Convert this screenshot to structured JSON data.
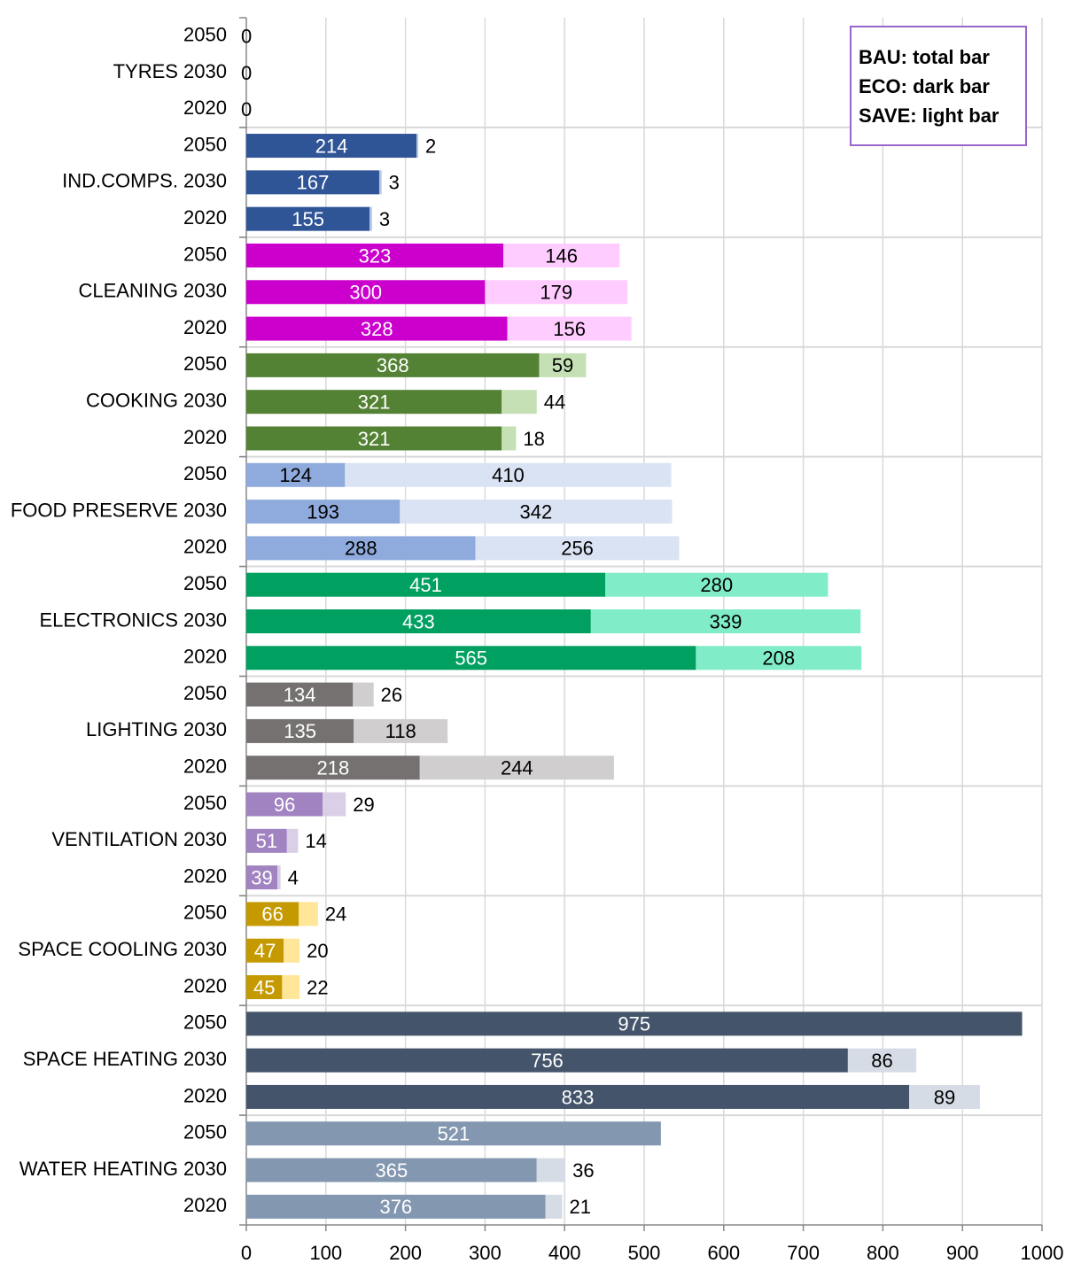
{
  "chart_data": {
    "type": "stacked-barh",
    "categories": [
      "2050",
      "TYRES 2030",
      "2020",
      "2050",
      "IND.COMPS. 2030",
      "2020",
      "2050",
      "CLEANING 2030",
      "2020",
      "2050",
      "COOKING 2030",
      "2020",
      "2050",
      "FOOD PRESERVE 2030",
      "2020",
      "2050",
      "ELECTRONICS 2030",
      "2020",
      "2050",
      "LIGHTING 2030",
      "2020",
      "2050",
      "VENTILATION 2030",
      "2020",
      "2050",
      "SPACE COOLING 2030",
      "2020",
      "2050",
      "SPACE HEATING 2030",
      "2020",
      "2050",
      "WATER HEATING 2030",
      "2020"
    ],
    "group_size": 3,
    "series": [
      {
        "values": [
          0,
          0,
          0,
          214,
          167,
          155,
          323,
          300,
          328,
          368,
          321,
          321,
          124,
          193,
          288,
          451,
          433,
          565,
          134,
          135,
          218,
          96,
          51,
          39,
          66,
          47,
          45,
          975,
          756,
          833,
          521,
          365,
          376
        ],
        "colors": [
          "#333f50",
          "#2f5597",
          "#cc00cc",
          "#548235",
          "#8faadc",
          "#00a060",
          "#767171",
          "#a083c0",
          "#c59a00",
          "#44546a",
          "#8497b0"
        ],
        "label_colors": [
          "#000000",
          "#ffffff",
          "#ffffff",
          "#ffffff",
          "#000000",
          "#ffffff",
          "#ffffff",
          "#ffffff",
          "#ffffff",
          "#ffffff",
          "#ffffff"
        ]
      },
      {
        "values": [
          null,
          null,
          null,
          2,
          3,
          3,
          146,
          179,
          156,
          59,
          44,
          18,
          410,
          342,
          256,
          280,
          339,
          208,
          26,
          118,
          244,
          29,
          14,
          4,
          24,
          20,
          22,
          null,
          86,
          89,
          null,
          36,
          21
        ],
        "colors": [
          "#d6dce5",
          "#b4c7e7",
          "#ffccff",
          "#c5e0b4",
          "#dae3f3",
          "#80ecc8",
          "#d0cece",
          "#d9cfe6",
          "#ffe699",
          "#d6dce5",
          "#d6dce5"
        ]
      }
    ],
    "xlim": [
      0,
      1000
    ],
    "xticks": [
      0,
      100,
      200,
      300,
      400,
      500,
      600,
      700,
      800,
      900,
      1000
    ],
    "grid": true,
    "legend": [
      "BAU: total bar",
      "ECO: dark bar",
      "SAVE: light bar"
    ],
    "legend_position": "upper right",
    "legend_border_color": "#9966cc"
  }
}
